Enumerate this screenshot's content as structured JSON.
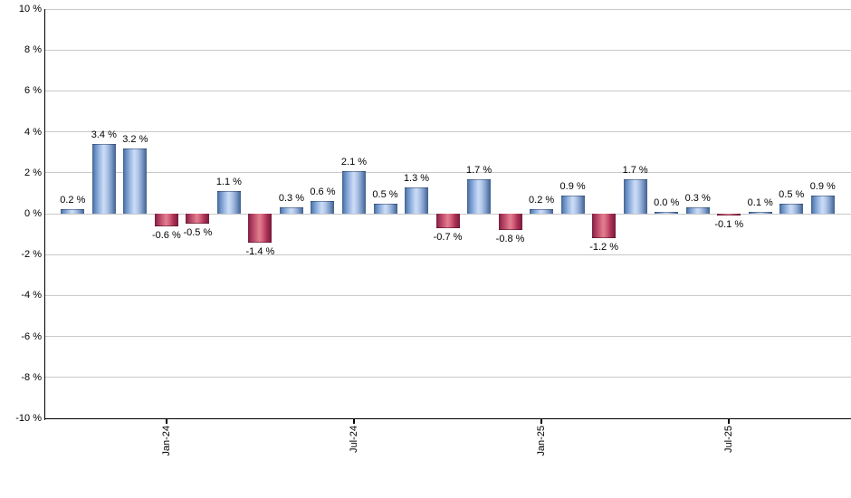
{
  "chart_data": {
    "type": "bar",
    "title": "",
    "xlabel": "",
    "ylabel": "",
    "legend": false,
    "grid": true,
    "values": [
      0.2,
      3.4,
      3.2,
      -0.6,
      -0.5,
      1.1,
      -1.4,
      0.3,
      0.6,
      2.1,
      0.5,
      1.3,
      -0.7,
      1.7,
      -0.8,
      0.2,
      0.9,
      -1.2,
      1.7,
      0.0,
      0.3,
      -0.1,
      0.1,
      0.5,
      0.9
    ],
    "bar_labels": [
      "0.2 %",
      "3.4 %",
      "3.2 %",
      "-0.6 %",
      "-0.5 %",
      "1.1 %",
      "-1.4 %",
      "0.3 %",
      "0.6 %",
      "2.1 %",
      "0.5 %",
      "1.3 %",
      "-0.7 %",
      "1.7 %",
      "-0.8 %",
      "0.2 %",
      "0.9 %",
      "-1.2 %",
      "1.7 %",
      "0.0 %",
      "0.3 %",
      "-0.1 %",
      "0.1 %",
      "0.5 %",
      "0.9 %"
    ],
    "y_axis": {
      "min": -10,
      "max": 10,
      "step": 2,
      "ticks": [
        {
          "value": 10,
          "label": "10 %"
        },
        {
          "value": 8,
          "label": "8 %"
        },
        {
          "value": 6,
          "label": "6 %"
        },
        {
          "value": 4,
          "label": "4 %"
        },
        {
          "value": 2,
          "label": "2 %"
        },
        {
          "value": 0,
          "label": "0 %"
        },
        {
          "value": -2,
          "label": "-2 %"
        },
        {
          "value": -4,
          "label": "-4 %"
        },
        {
          "value": -6,
          "label": "-6 %"
        },
        {
          "value": -8,
          "label": "-8 %"
        },
        {
          "value": -10,
          "label": "-10 %"
        }
      ]
    },
    "x_axis": {
      "ticks": [
        {
          "label": "Jan-24",
          "bar_index": 3
        },
        {
          "label": "Jul-24",
          "bar_index": 9
        },
        {
          "label": "Jan-25",
          "bar_index": 15
        },
        {
          "label": "Jul-25",
          "bar_index": 21
        }
      ]
    },
    "colors": {
      "positive_bar": "#7f9cca",
      "positive_highlight": "#cdddf6",
      "negative_bar": "#ab2f53",
      "negative_highlight": "#e2808f",
      "grid": "#c9c9c9",
      "axis": "#000000",
      "text": "#000000",
      "background": "#ffffff"
    }
  }
}
